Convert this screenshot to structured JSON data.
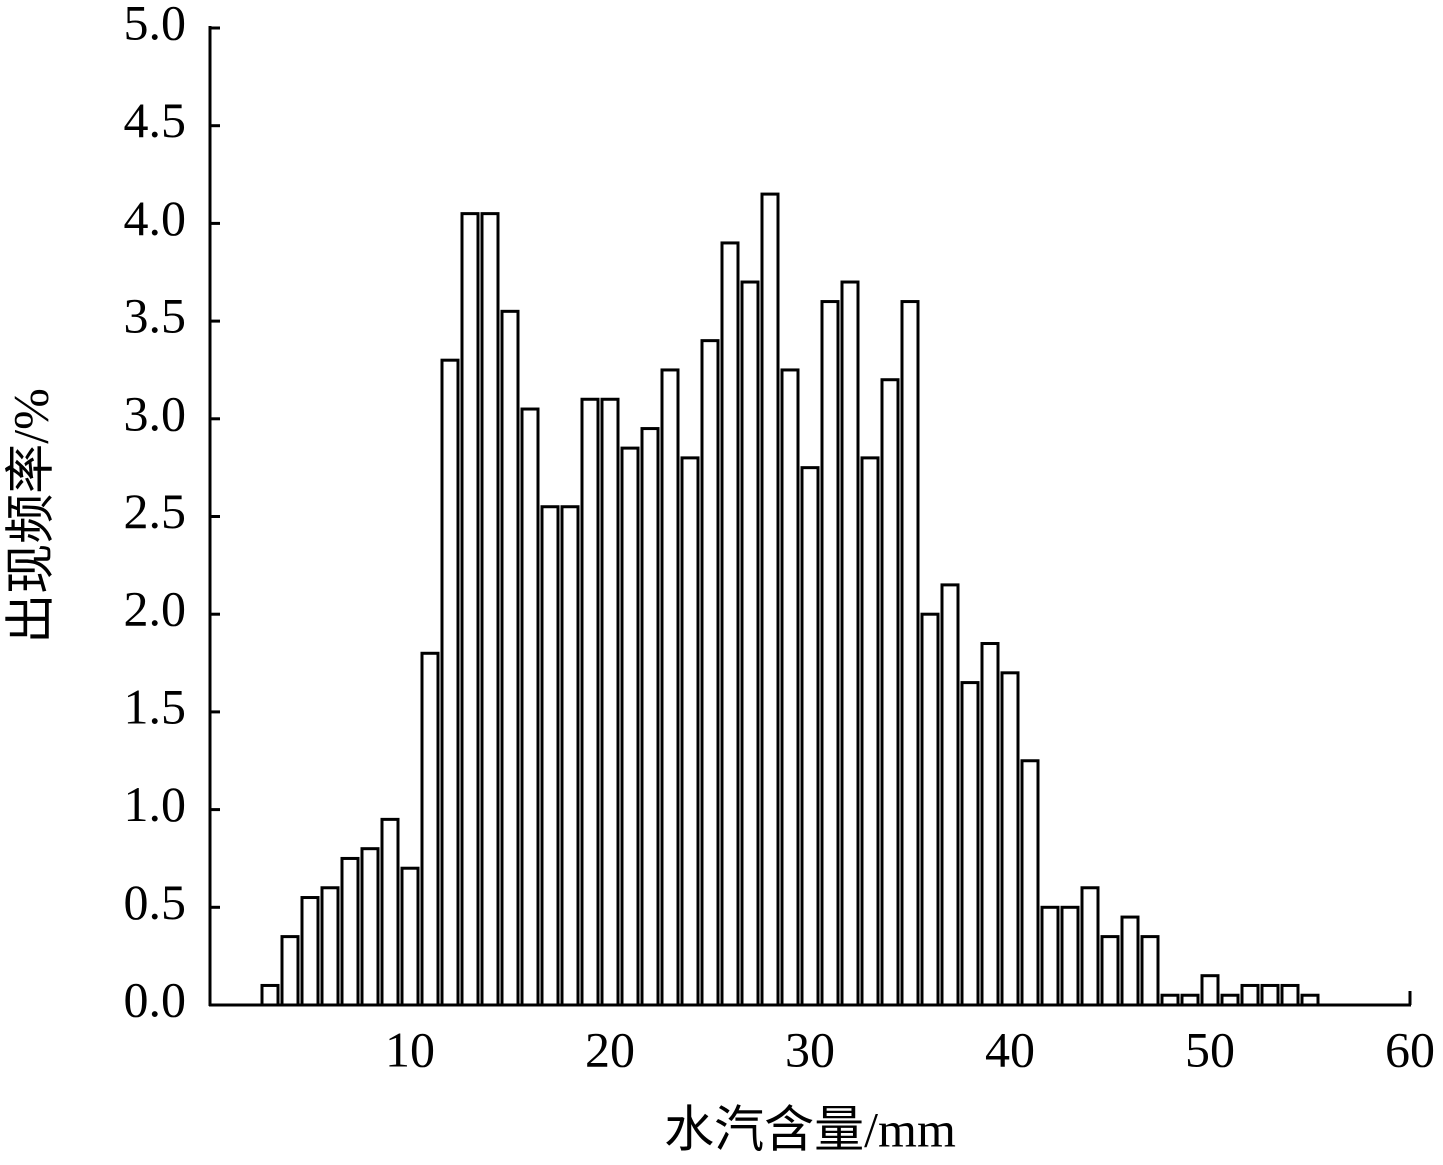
{
  "chart_data": {
    "type": "histogram",
    "x_label": "水汽含量/mm",
    "y_label": "出现频率/%",
    "bins": [
      2.5,
      3.5,
      4.5,
      5.5,
      6.5,
      7.5,
      8.5,
      9.5,
      10.5,
      11.5,
      12.5,
      13.5,
      14.5,
      15.5,
      16.5,
      17.5,
      18.5,
      19.5,
      20.5,
      21.5,
      22.5,
      23.5,
      24.5,
      25.5,
      26.5,
      27.5,
      28.5,
      29.5,
      30.5,
      31.5,
      32.5,
      33.5,
      34.5,
      35.5,
      36.5,
      37.5,
      38.5,
      39.5,
      40.5,
      41.5,
      42.5,
      43.5,
      44.5,
      45.5,
      46.5,
      47.5,
      48.5,
      49.5,
      50.5,
      51.5,
      52.5,
      53.5,
      54.5,
      55.5
    ],
    "values": [
      0.1,
      0.35,
      0.55,
      0.6,
      0.75,
      0.8,
      0.95,
      0.7,
      1.8,
      3.3,
      4.05,
      4.05,
      3.55,
      3.05,
      2.55,
      2.55,
      3.1,
      3.1,
      2.85,
      2.95,
      3.25,
      2.8,
      3.4,
      3.9,
      3.7,
      4.15,
      3.25,
      2.75,
      3.6,
      3.7,
      2.8,
      3.2,
      3.6,
      2.0,
      2.15,
      1.65,
      1.85,
      1.7,
      1.25,
      0.5,
      0.5,
      0.6,
      0.35,
      0.45,
      0.35,
      0.05,
      0.05,
      0.15,
      0.05,
      0.1,
      0.1,
      0.1,
      0.05
    ],
    "color": "#ffffff",
    "edge_color": "#000000",
    "xlim": [
      0,
      60
    ],
    "xticks": [
      10,
      20,
      30,
      40,
      50,
      60
    ],
    "ylim": [
      0,
      5
    ],
    "yticks": [
      {
        "value": 0,
        "label": "0.0"
      },
      {
        "value": 0.5,
        "label": "0.5"
      },
      {
        "value": 1,
        "label": "1.0"
      },
      {
        "value": 1.5,
        "label": "1.5"
      },
      {
        "value": 2,
        "label": "2.0"
      },
      {
        "value": 2.5,
        "label": "2.5"
      },
      {
        "value": 3,
        "label": "3.0"
      },
      {
        "value": 3.5,
        "label": "3.5"
      },
      {
        "value": 4,
        "label": "4.0"
      },
      {
        "value": 4.5,
        "label": "4.5"
      },
      {
        "value": 5,
        "label": "5.0"
      }
    ]
  }
}
